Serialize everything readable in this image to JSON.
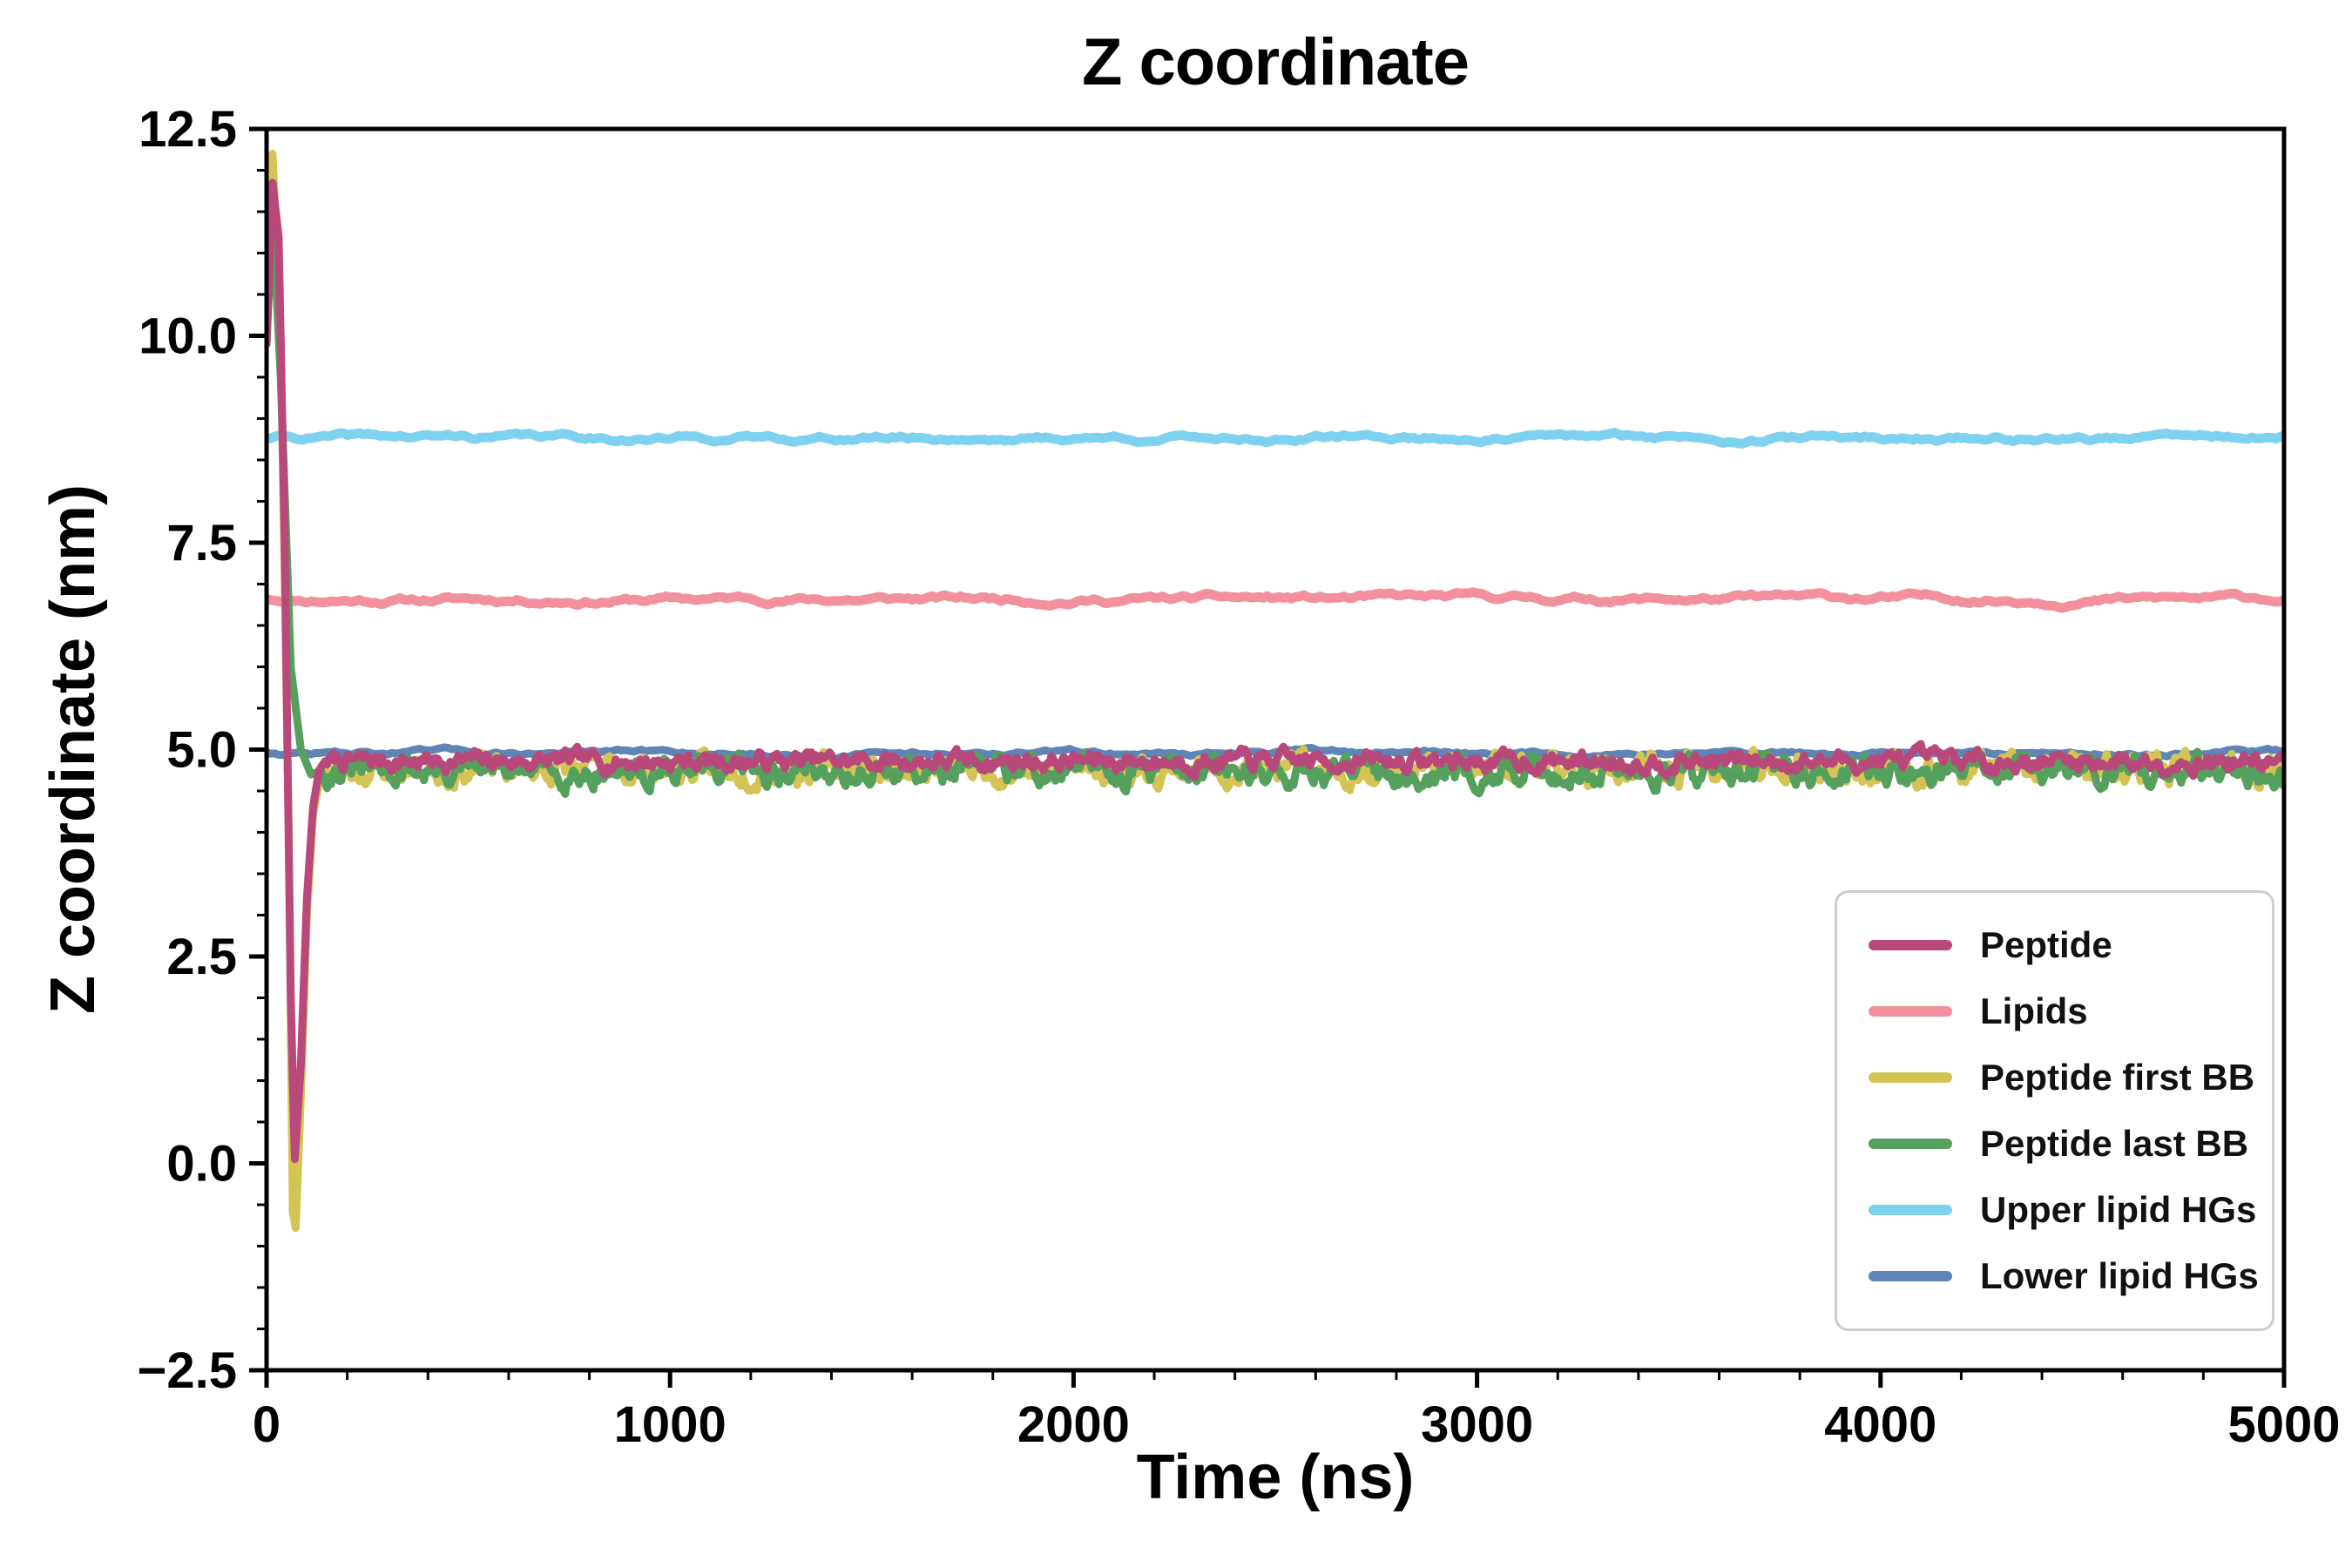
{
  "chart_data": {
    "type": "line",
    "title": "Z coordinate",
    "xlabel": "Time (ns)",
    "ylabel": "Z coordinate (nm)",
    "xlim": [
      0,
      5000
    ],
    "ylim": [
      -2.5,
      12.5
    ],
    "xticks": [
      0,
      1000,
      2000,
      3000,
      4000,
      5000
    ],
    "xtick_labels": [
      "0",
      "1000",
      "2000",
      "3000",
      "4000",
      "5000"
    ],
    "yticks": [
      -2.5,
      0.0,
      2.5,
      5.0,
      7.5,
      10.0,
      12.5
    ],
    "ytick_labels": [
      "−2.5",
      "0.0",
      "2.5",
      "5.0",
      "7.5",
      "10.0",
      "12.5"
    ],
    "x_minor_step": 200,
    "y_minor_step": 0.5,
    "grid": false,
    "legend_position": "lower right",
    "samples_x": [
      0,
      250,
      500,
      750,
      1000,
      1250,
      1500,
      1750,
      2000,
      2250,
      2500,
      2750,
      3000,
      3250,
      3500,
      3750,
      4000,
      4250,
      4500,
      4750,
      5000
    ],
    "series": [
      {
        "name": "Peptide",
        "color": "#b9487b",
        "baseline": 4.86,
        "amplitude": 0.16,
        "smooth": 0.72,
        "seed": 7,
        "step": 5,
        "zorder": 6,
        "stroke_width": 9,
        "transient": [
          [
            0,
            9.9
          ],
          [
            15,
            11.85
          ],
          [
            30,
            11.2
          ],
          [
            45,
            7.5
          ],
          [
            60,
            2.0
          ],
          [
            70,
            0.05
          ],
          [
            85,
            1.2
          ],
          [
            100,
            3.2
          ],
          [
            115,
            4.3
          ],
          [
            130,
            4.75
          ],
          [
            145,
            4.86
          ]
        ],
        "samples_y": [
          10.0,
          4.9,
          4.85,
          5.0,
          4.8,
          4.9,
          4.85,
          4.8,
          4.9,
          5.0,
          4.85,
          4.8,
          4.9,
          4.85,
          4.95,
          4.8,
          4.85,
          4.9,
          4.8,
          4.85,
          4.9
        ]
      },
      {
        "name": "Lipids",
        "color": "#f2919d",
        "baseline": 6.82,
        "amplitude": 0.045,
        "smooth": 0.92,
        "seed": 11,
        "step": 10,
        "zorder": 3,
        "stroke_width": 11,
        "transient": [
          [
            0,
            6.82
          ]
        ],
        "samples_y": [
          6.8,
          6.82,
          6.8,
          6.83,
          6.81,
          6.8,
          6.82,
          6.8,
          6.81,
          6.83,
          6.8,
          6.82,
          6.81,
          6.8,
          6.82,
          6.8,
          6.83,
          6.81,
          6.8,
          6.82,
          6.85
        ]
      },
      {
        "name": "Peptide first BB",
        "color": "#d4c455",
        "baseline": 4.76,
        "amplitude": 0.24,
        "smooth": 0.7,
        "seed": 23,
        "step": 5,
        "zorder": 4,
        "stroke_width": 9,
        "transient": [
          [
            0,
            10.8
          ],
          [
            15,
            12.2
          ],
          [
            35,
            10.0
          ],
          [
            55,
            4.0
          ],
          [
            65,
            -0.6
          ],
          [
            72,
            -0.78
          ],
          [
            85,
            0.8
          ],
          [
            100,
            3.0
          ],
          [
            115,
            4.2
          ],
          [
            130,
            4.6
          ],
          [
            145,
            4.76
          ]
        ],
        "samples_y": [
          12.2,
          4.8,
          4.7,
          4.75,
          4.8,
          4.65,
          4.75,
          4.7,
          4.8,
          4.75,
          4.7,
          4.65,
          4.75,
          4.7,
          4.8,
          4.7,
          4.75,
          4.65,
          4.7,
          4.75,
          4.7
        ]
      },
      {
        "name": "Peptide last BB",
        "color": "#55a05c",
        "baseline": 4.74,
        "amplitude": 0.24,
        "smooth": 0.7,
        "seed": 31,
        "step": 5,
        "zorder": 5,
        "stroke_width": 9,
        "transient": [
          [
            0,
            9.9
          ],
          [
            15,
            11.5
          ],
          [
            35,
            9.5
          ],
          [
            60,
            6.0
          ],
          [
            85,
            5.0
          ],
          [
            110,
            4.7
          ],
          [
            135,
            4.74
          ]
        ],
        "samples_y": [
          11.5,
          4.7,
          4.8,
          4.75,
          4.65,
          4.75,
          4.7,
          4.8,
          4.7,
          4.75,
          4.65,
          4.7,
          4.75,
          4.7,
          4.6,
          4.75,
          4.7,
          4.65,
          4.75,
          4.7,
          4.75
        ]
      },
      {
        "name": "Upper lipid HGs",
        "color": "#7fd2ef",
        "baseline": 8.77,
        "amplitude": 0.04,
        "smooth": 0.92,
        "seed": 41,
        "step": 10,
        "zorder": 2,
        "stroke_width": 11,
        "transient": [
          [
            0,
            8.77
          ]
        ],
        "samples_y": [
          8.75,
          8.77,
          8.76,
          8.78,
          8.77,
          8.76,
          8.77,
          8.78,
          8.76,
          8.77,
          8.75,
          8.77,
          8.78,
          8.76,
          8.77,
          8.78,
          8.76,
          8.77,
          8.75,
          8.78,
          8.77
        ]
      },
      {
        "name": "Lower lipid HGs",
        "color": "#5e85b5",
        "baseline": 4.96,
        "amplitude": 0.035,
        "smooth": 0.92,
        "seed": 47,
        "step": 10,
        "zorder": 1,
        "stroke_width": 9,
        "transient": [
          [
            0,
            4.97
          ]
        ],
        "samples_y": [
          4.97,
          4.95,
          4.96,
          4.95,
          4.94,
          4.96,
          4.95,
          4.97,
          4.95,
          4.96,
          4.94,
          4.95,
          4.96,
          4.95,
          4.97,
          4.95,
          4.94,
          4.96,
          4.95,
          4.96,
          4.95
        ]
      }
    ]
  }
}
